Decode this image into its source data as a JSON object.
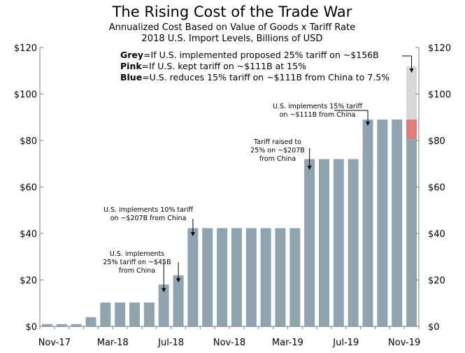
{
  "chart_data": {
    "type": "bar",
    "title": "The Rising Cost of the Trade War",
    "subtitle_lines": [
      "Annualized Cost Based on Value of Goods x Tariff Rate",
      "2018 U.S. Import Levels, Billions of USD"
    ],
    "xlabel": "",
    "ylabel": "",
    "ylim": [
      0,
      120
    ],
    "yticks": [
      0,
      20,
      40,
      60,
      80,
      100,
      120
    ],
    "ytick_labels": [
      "$0",
      "$20",
      "$40",
      "$60",
      "$80",
      "$100",
      "$120"
    ],
    "grid": false,
    "x_tick_labels": [
      "Nov-17",
      "Mar-18",
      "Jul-18",
      "Nov-18",
      "Mar-19",
      "Jul-19",
      "Nov-19"
    ],
    "x_tick_indices": [
      0,
      4,
      8,
      12,
      16,
      20,
      24
    ],
    "categories": [
      "Nov-17",
      "Dec-17",
      "Jan-18",
      "Feb-18",
      "Mar-18",
      "Apr-18",
      "May-18",
      "Jun-18",
      "Jul-18",
      "Aug-18",
      "Sep-18",
      "Oct-18",
      "Nov-18",
      "Dec-18",
      "Jan-19",
      "Feb-19",
      "Mar-19",
      "Apr-19",
      "May-19",
      "Jun-19",
      "Jul-19",
      "Aug-19",
      "Sep-19",
      "Oct-19",
      "Nov-19",
      "Dec-19"
    ],
    "values": [
      1,
      1,
      1,
      4,
      10.3,
      10.3,
      10.3,
      10.3,
      18,
      22,
      42.3,
      42.3,
      42.3,
      42.3,
      42.3,
      42.3,
      42.3,
      42.3,
      72,
      72,
      72,
      72,
      89,
      89,
      89,
      89
    ],
    "colors": {
      "bar": "#8fa3b0",
      "grey": "#d8d8d8",
      "pink": "#e07b7b",
      "axis": "#7f7f7f"
    },
    "last_bar": {
      "grey_top": 112,
      "pink_top": 89,
      "blue_top": 80.5
    },
    "legend": [
      {
        "key": "Grey",
        "text": "=If U.S. implemented proposed 25% tariff on ~$156B"
      },
      {
        "key": "Pink",
        "text": "=If U.S. kept tariff on ~$111B at 15%"
      },
      {
        "key": "Blue",
        "text": "=U.S. reduces 15% tariff on ~$111B from China to 7.5%"
      }
    ],
    "annotations": [
      {
        "lines": [
          "U.S. implements",
          "25% tariff on ~$45B",
          "from China"
        ]
      },
      {
        "lines": [
          "U.S. implements 10% tariff",
          "on ~$207B from China"
        ]
      },
      {
        "lines": [
          "Tariff raised to",
          "25% on ~$207B",
          "from China"
        ]
      },
      {
        "lines": [
          "U.S. implements 15% tariff",
          "on ~$111B from China"
        ]
      }
    ]
  }
}
